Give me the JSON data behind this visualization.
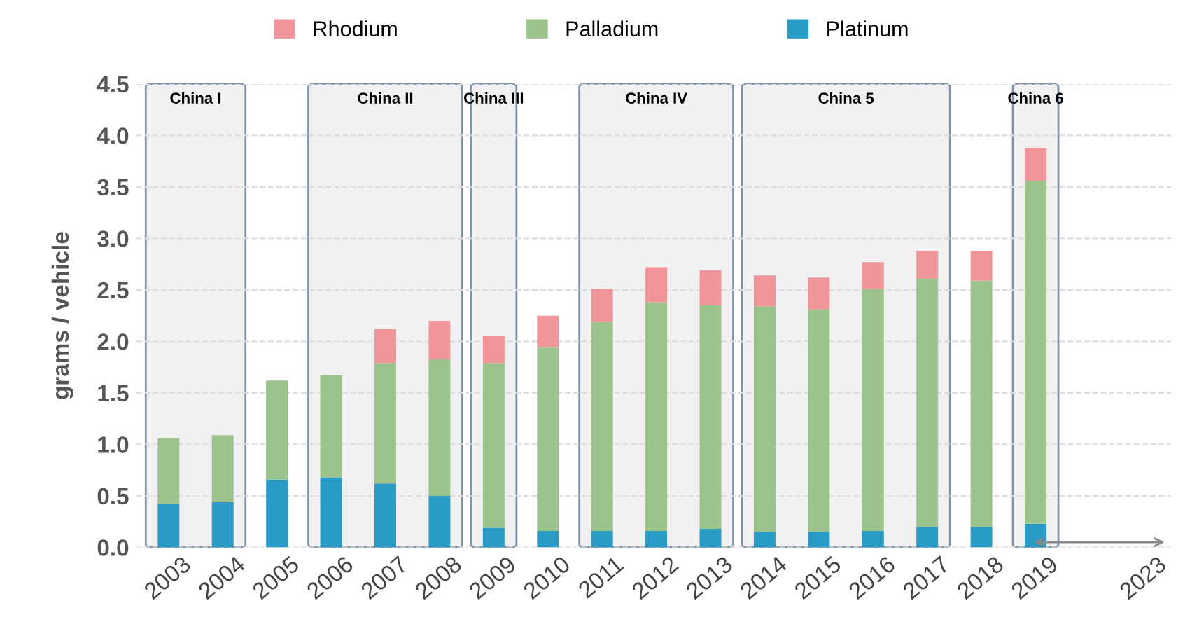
{
  "chart_data": {
    "type": "bar",
    "stacked": true,
    "ylabel": "grams / vehicle",
    "categories": [
      "2003",
      "2004",
      "2005",
      "2006",
      "2007",
      "2008",
      "2009",
      "2010",
      "2011",
      "2012",
      "2013",
      "2014",
      "2015",
      "2016",
      "2017",
      "2018",
      "2019",
      null,
      "2023"
    ],
    "series": [
      {
        "name": "Platinum",
        "color": "#2a9bc4",
        "values": [
          0.42,
          0.44,
          0.66,
          0.68,
          0.62,
          0.5,
          0.19,
          0.16,
          0.16,
          0.16,
          0.18,
          0.15,
          0.15,
          0.16,
          0.2,
          0.2,
          0.23,
          null,
          null
        ]
      },
      {
        "name": "Palladium",
        "color": "#9dc38c",
        "values": [
          0.64,
          0.65,
          0.96,
          0.99,
          1.17,
          1.33,
          1.6,
          1.78,
          2.03,
          2.22,
          2.17,
          2.19,
          2.16,
          2.35,
          2.41,
          2.39,
          3.33,
          null,
          null
        ]
      },
      {
        "name": "Rhodium",
        "color": "#f0959a",
        "values": [
          null,
          null,
          null,
          null,
          0.33,
          0.37,
          0.26,
          0.31,
          0.32,
          0.34,
          0.34,
          0.3,
          0.31,
          0.26,
          0.27,
          0.29,
          0.32,
          null,
          null
        ]
      }
    ],
    "ylim": [
      0,
      4.5
    ],
    "yticks": [
      {
        "value": 0,
        "label": "0.0"
      },
      {
        "value": 0.5,
        "label": "0.5"
      },
      {
        "value": 1,
        "label": "1.0"
      },
      {
        "value": 1.5,
        "label": "1.5"
      },
      {
        "value": 2,
        "label": "2.0"
      },
      {
        "value": 2.5,
        "label": "2.5"
      },
      {
        "value": 3,
        "label": "3.0"
      },
      {
        "value": 3.5,
        "label": "3.5"
      },
      {
        "value": 4,
        "label": "4.0"
      },
      {
        "value": 4.5,
        "label": "4.5"
      }
    ],
    "grid": "y",
    "legend": "top",
    "bands": [
      {
        "axis": "x",
        "from": "2003",
        "to": "2004",
        "label": "China I",
        "color": "#f1f1f1"
      },
      {
        "axis": "x",
        "from": "2006",
        "to": "2008",
        "label": "China II",
        "color": "#f1f1f1"
      },
      {
        "axis": "x",
        "from": "2009",
        "to": "2009",
        "label": "China III",
        "color": "#f1f1f1"
      },
      {
        "axis": "x",
        "from": "2011",
        "to": "2013",
        "label": "China IV",
        "color": "#f1f1f1"
      },
      {
        "axis": "x",
        "from": "2014",
        "to": "2017",
        "label": "China 5",
        "color": "#f1f1f1"
      },
      {
        "axis": "x",
        "from": "2019",
        "to": "2019",
        "label": "China 6",
        "color": "#f1f1f1"
      }
    ]
  }
}
